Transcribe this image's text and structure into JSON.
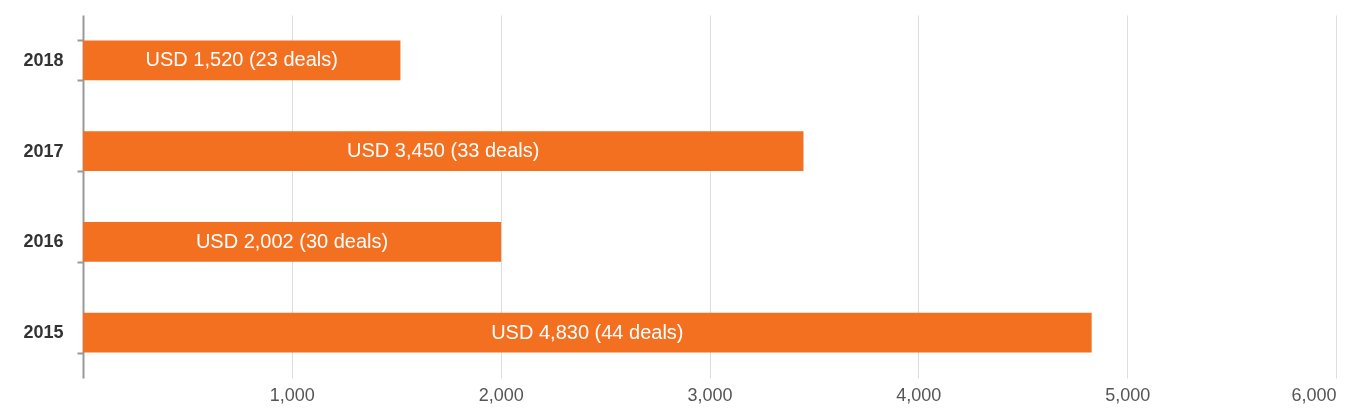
{
  "chart_data": {
    "type": "bar",
    "orientation": "horizontal",
    "categories": [
      "2018",
      "2017",
      "2016",
      "2015"
    ],
    "values": [
      1520,
      3450,
      2002,
      4830
    ],
    "value_labels": [
      "USD 1,520 (23 deals)",
      "USD 3,450 (33 deals)",
      "USD 2,002 (30 deals)",
      "USD 4,830 (44 deals)"
    ],
    "color": "#f37021",
    "xlim": [
      0,
      6000
    ],
    "xticks": [
      {
        "value": 1000,
        "label": "1,000"
      },
      {
        "value": 2000,
        "label": "2,000"
      },
      {
        "value": 3000,
        "label": "3,000"
      },
      {
        "value": 4000,
        "label": "4,000"
      },
      {
        "value": 5000,
        "label": "5,000"
      },
      {
        "value": 6000,
        "label": "6,000"
      }
    ],
    "grid": "x"
  }
}
